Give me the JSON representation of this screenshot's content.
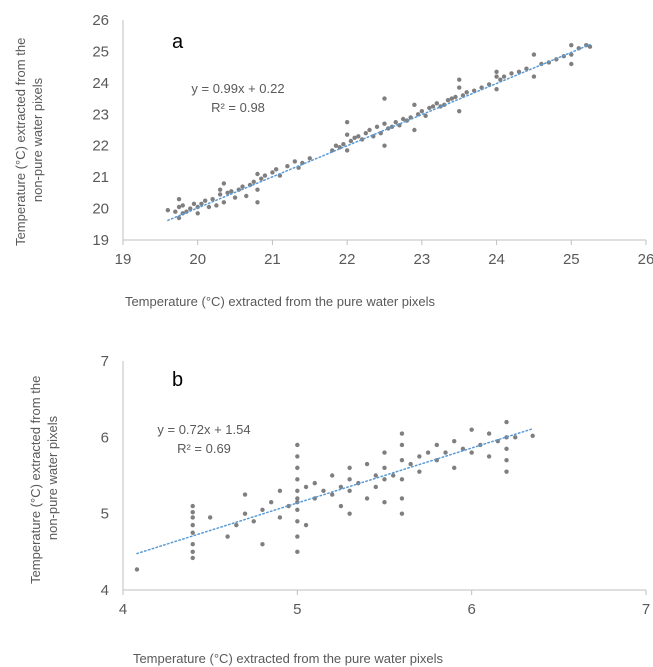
{
  "figure": {
    "panels": [
      {
        "panel_label": "a",
        "equation": "y = 0.99x + 0.22",
        "r_squared": "R² = 0.98",
        "x_ticks": [
          "19",
          "20",
          "21",
          "22",
          "23",
          "24",
          "25",
          "26"
        ],
        "y_ticks": [
          "19",
          "20",
          "21",
          "22",
          "23",
          "24",
          "25",
          "26"
        ]
      },
      {
        "panel_label": "b",
        "equation": "y = 0.72x + 1.54",
        "r_squared": "R² = 0.69",
        "x_ticks": [
          "4",
          "5",
          "6",
          "7"
        ],
        "y_ticks": [
          "4",
          "5",
          "6",
          "7"
        ]
      }
    ]
  },
  "colors": {
    "points": "#7f7f7f",
    "trendline": "#5b9bd5",
    "axis": "#bfbfbf",
    "text": "#595959"
  },
  "chart_data": [
    {
      "type": "scatter",
      "title": "",
      "xlabel": "Temperature (°C) extracted from the pure water pixels",
      "ylabel": "Temperature (°C) extracted from the non-pure water pixels",
      "xlim": [
        19,
        26
      ],
      "ylim": [
        19,
        26
      ],
      "grid": false,
      "trendline": {
        "slope": 0.99,
        "intercept": 0.22,
        "r2": 0.98,
        "x_range": [
          19.6,
          25.25
        ],
        "style": "dotted"
      },
      "series": [
        {
          "x": [
            19.6,
            19.7,
            19.75,
            19.75,
            19.75,
            19.8,
            19.8,
            19.85,
            19.9,
            19.95,
            20.0,
            20.0,
            20.05,
            20.1,
            20.15,
            20.2,
            20.25,
            20.3,
            20.3,
            20.35,
            20.35,
            20.4,
            20.45,
            20.5,
            20.55,
            20.6,
            20.65,
            20.7,
            20.75,
            20.8,
            20.8,
            20.8,
            20.85,
            20.9,
            21.0,
            21.05,
            21.1,
            21.2,
            21.3,
            21.35,
            21.4,
            21.5,
            21.8,
            21.85,
            21.9,
            21.95,
            22.0,
            22.0,
            22.0,
            22.05,
            22.1,
            22.15,
            22.2,
            22.25,
            22.3,
            22.35,
            22.4,
            22.45,
            22.5,
            22.5,
            22.5,
            22.55,
            22.6,
            22.65,
            22.7,
            22.75,
            22.8,
            22.85,
            22.9,
            22.9,
            22.95,
            23.0,
            23.05,
            23.1,
            23.15,
            23.2,
            23.25,
            23.3,
            23.35,
            23.4,
            23.45,
            23.5,
            23.5,
            23.5,
            23.55,
            23.6,
            23.7,
            23.8,
            23.9,
            24.0,
            24.0,
            24.0,
            24.05,
            24.1,
            24.2,
            24.3,
            24.4,
            24.5,
            24.5,
            24.6,
            24.7,
            24.8,
            24.9,
            25.0,
            25.0,
            25.0,
            25.1,
            25.2,
            25.25
          ],
          "y": [
            19.95,
            19.9,
            19.7,
            20.05,
            20.3,
            19.85,
            20.1,
            19.9,
            20.0,
            20.15,
            20.05,
            19.85,
            20.15,
            20.25,
            20.05,
            20.3,
            20.1,
            20.45,
            20.6,
            20.2,
            20.8,
            20.5,
            20.55,
            20.35,
            20.6,
            20.7,
            20.4,
            20.75,
            20.85,
            20.6,
            20.2,
            21.1,
            20.95,
            21.05,
            21.15,
            21.25,
            21.05,
            21.35,
            21.5,
            21.3,
            21.45,
            21.6,
            21.85,
            22.0,
            21.95,
            22.05,
            21.85,
            22.35,
            22.75,
            22.15,
            22.25,
            22.3,
            22.2,
            22.4,
            22.5,
            22.3,
            22.6,
            22.4,
            22.0,
            22.7,
            23.5,
            22.55,
            22.6,
            22.75,
            22.65,
            22.85,
            22.8,
            22.9,
            22.5,
            23.3,
            23.0,
            23.1,
            22.95,
            23.2,
            23.25,
            23.35,
            23.25,
            23.3,
            23.45,
            23.5,
            23.55,
            23.1,
            23.85,
            24.1,
            23.6,
            23.7,
            23.75,
            23.85,
            23.95,
            23.8,
            24.2,
            24.35,
            24.1,
            24.2,
            24.3,
            24.35,
            24.45,
            24.2,
            24.9,
            24.6,
            24.65,
            24.75,
            24.85,
            24.6,
            24.9,
            25.2,
            25.1,
            25.2,
            25.15
          ]
        }
      ]
    },
    {
      "type": "scatter",
      "title": "",
      "xlabel": "Temperature (°C) extracted from the pure water pixels",
      "ylabel": "Temperature (°C) extracted from the non-pure water pixels",
      "xlim": [
        4,
        7
      ],
      "ylim": [
        4,
        7
      ],
      "grid": false,
      "trendline": {
        "slope": 0.72,
        "intercept": 1.54,
        "r2": 0.69,
        "x_range": [
          4.08,
          6.35
        ],
        "style": "dotted"
      },
      "series": [
        {
          "x": [
            4.08,
            4.4,
            4.4,
            4.4,
            4.4,
            4.4,
            4.4,
            4.4,
            4.4,
            4.5,
            4.6,
            4.65,
            4.7,
            4.7,
            4.75,
            4.8,
            4.8,
            4.85,
            4.9,
            4.9,
            4.95,
            5.0,
            5.0,
            5.0,
            5.0,
            5.0,
            5.0,
            5.0,
            5.0,
            5.0,
            5.0,
            5.0,
            5.05,
            5.05,
            5.1,
            5.1,
            5.15,
            5.2,
            5.2,
            5.25,
            5.25,
            5.3,
            5.3,
            5.3,
            5.3,
            5.35,
            5.4,
            5.4,
            5.45,
            5.45,
            5.5,
            5.5,
            5.5,
            5.5,
            5.55,
            5.6,
            5.6,
            5.6,
            5.6,
            5.6,
            5.6,
            5.65,
            5.7,
            5.7,
            5.75,
            5.8,
            5.8,
            5.85,
            5.9,
            5.9,
            5.95,
            6.0,
            6.0,
            6.05,
            6.1,
            6.1,
            6.15,
            6.2,
            6.2,
            6.2,
            6.2,
            6.2,
            6.25,
            6.35
          ],
          "y": [
            4.27,
            4.42,
            4.5,
            4.6,
            4.75,
            4.85,
            4.95,
            5.02,
            5.1,
            4.95,
            4.7,
            4.85,
            5.0,
            5.25,
            4.9,
            5.05,
            4.6,
            5.15,
            4.95,
            5.3,
            5.1,
            4.5,
            4.7,
            4.9,
            5.05,
            5.15,
            5.3,
            5.45,
            5.6,
            5.75,
            5.9,
            5.2,
            5.35,
            4.85,
            5.2,
            5.4,
            5.3,
            5.25,
            5.5,
            5.1,
            5.35,
            5.0,
            5.3,
            5.45,
            5.6,
            5.4,
            5.2,
            5.65,
            5.5,
            5.35,
            5.15,
            5.45,
            5.6,
            5.8,
            5.5,
            5.0,
            5.2,
            5.45,
            5.7,
            5.9,
            6.05,
            5.65,
            5.75,
            5.55,
            5.8,
            5.7,
            5.9,
            5.8,
            5.6,
            5.95,
            5.85,
            5.8,
            6.1,
            5.9,
            5.75,
            6.05,
            5.95,
            5.55,
            5.7,
            5.85,
            6.0,
            6.2,
            6.0,
            6.02
          ]
        }
      ]
    }
  ]
}
